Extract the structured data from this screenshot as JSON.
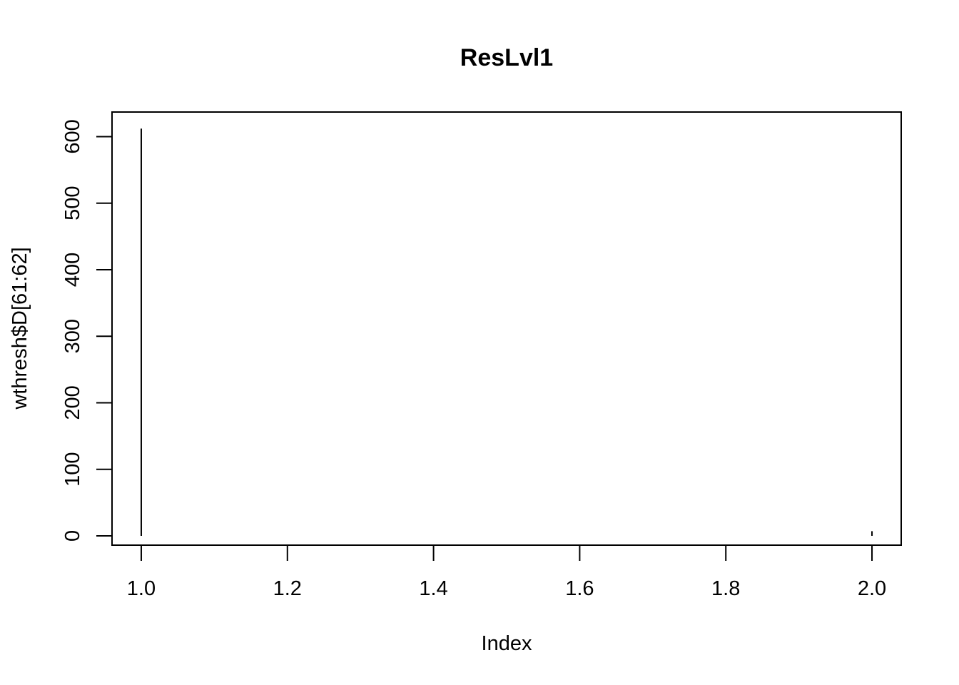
{
  "chart_data": {
    "type": "bar",
    "style": "histogram-like vertical lines (R type='h')",
    "title": "ResLvl1",
    "xlabel": "Index",
    "ylabel": "wthresh$D[61:62]",
    "x": [
      1,
      2
    ],
    "values": [
      612,
      7
    ],
    "xlim": [
      0.96,
      2.04
    ],
    "ylim": [
      -14,
      637
    ],
    "xticks": [
      1.0,
      1.2,
      1.4,
      1.6,
      1.8,
      2.0
    ],
    "xtick_labels": [
      "1.0",
      "1.2",
      "1.4",
      "1.6",
      "1.8",
      "2.0"
    ],
    "yticks": [
      0,
      100,
      200,
      300,
      400,
      500,
      600
    ],
    "ytick_labels": [
      "0",
      "100",
      "200",
      "300",
      "400",
      "500",
      "600"
    ],
    "grid": false,
    "legend": "none",
    "line_color": "#000000"
  }
}
